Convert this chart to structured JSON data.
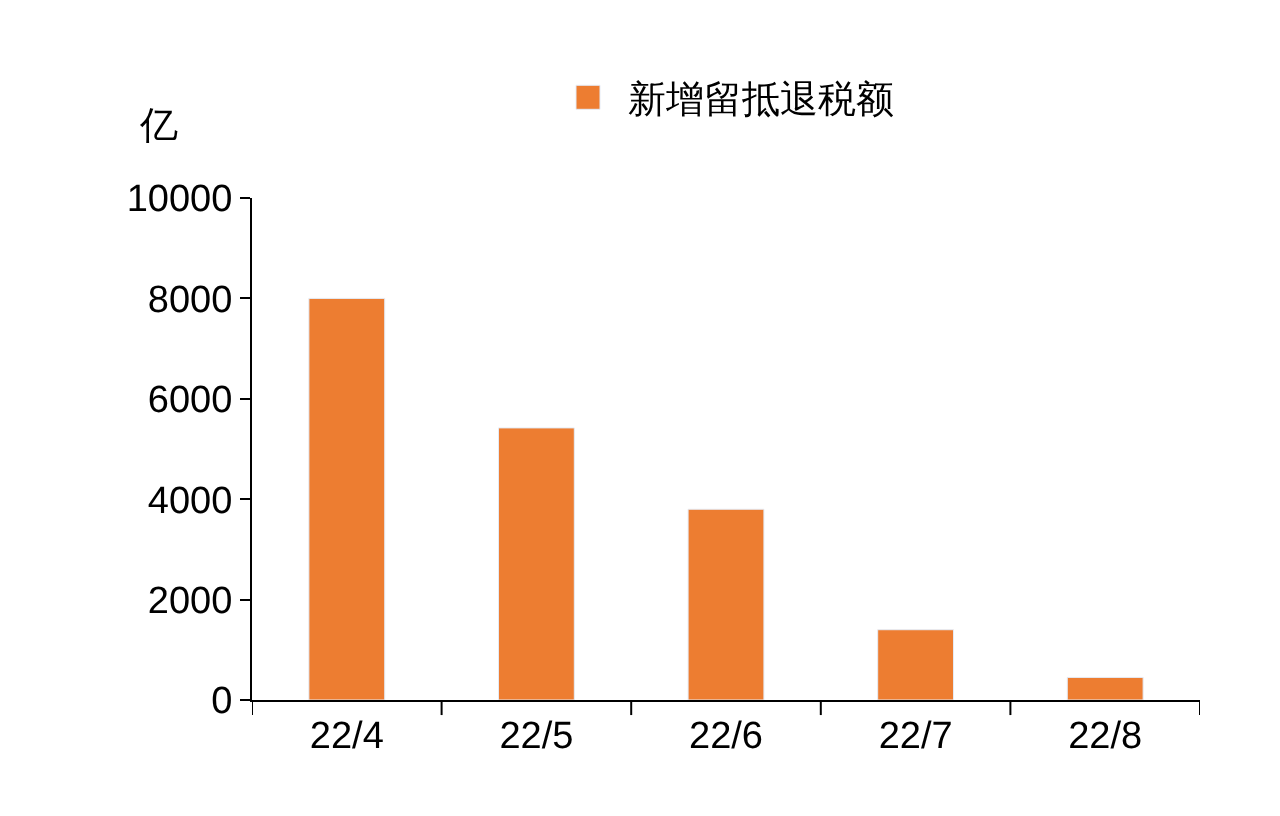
{
  "chart_data": {
    "type": "bar",
    "ylabel": "亿",
    "categories": [
      "22/4",
      "22/5",
      "22/6",
      "22/7",
      "22/8"
    ],
    "series": [
      {
        "name": "新增留抵退税额",
        "color": "#ed7d31",
        "values": [
          8000,
          5420,
          3800,
          1400,
          450
        ]
      }
    ],
    "ylim": [
      0,
      10000
    ],
    "yticks": [
      0,
      2000,
      4000,
      6000,
      8000,
      10000
    ],
    "legend": "top"
  }
}
